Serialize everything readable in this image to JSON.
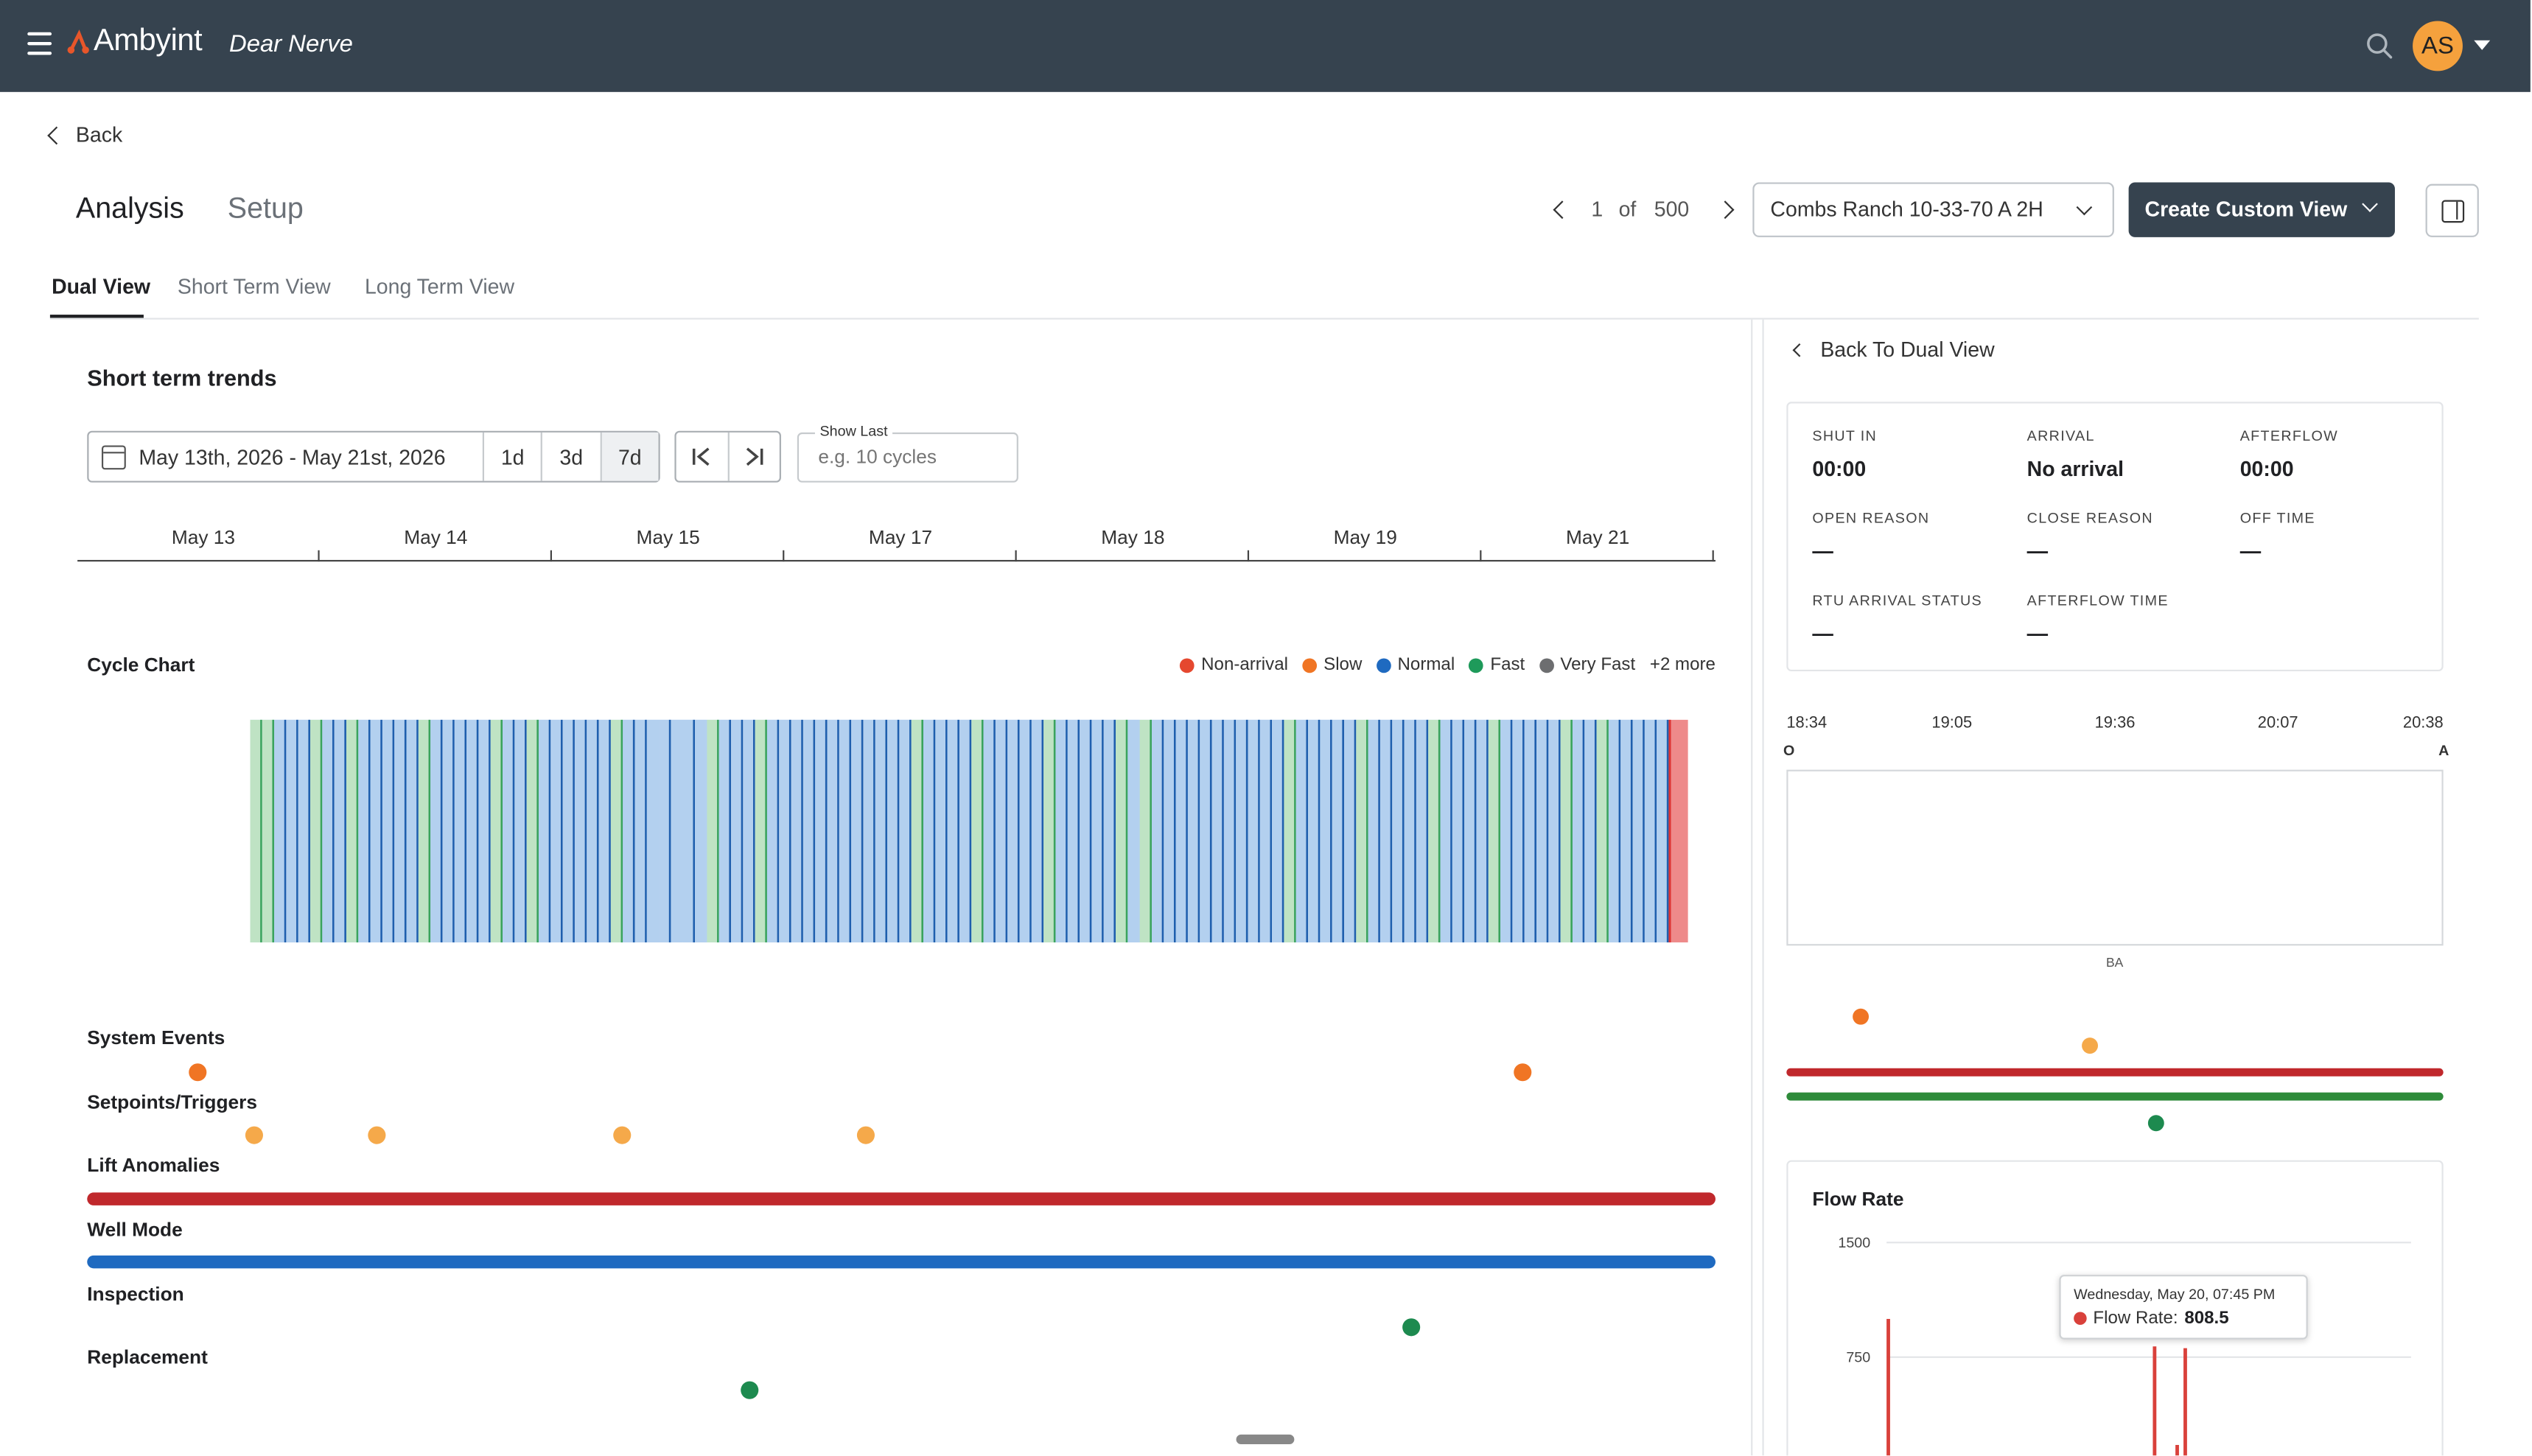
{
  "header": {
    "brand": "Ambyint",
    "org": "Dear Nerve",
    "avatar_initials": "AS",
    "brand_accent": "#e8562a",
    "bar_color": "#36434f"
  },
  "nav": {
    "back_label": "Back",
    "page_tabs": [
      {
        "label": "Analysis",
        "active": true
      },
      {
        "label": "Setup",
        "active": false
      }
    ],
    "pager": {
      "current": "1",
      "of_label": "of",
      "total": "500"
    },
    "well_select_value": "Combs Ranch 10-33-70 A 2H",
    "create_view_label": "Create Custom View",
    "view_tabs": [
      {
        "label": "Dual View",
        "active": true
      },
      {
        "label": "Short Term View",
        "active": false
      },
      {
        "label": "Long Term View",
        "active": false
      }
    ]
  },
  "short_term": {
    "title": "Short term trends",
    "date_range": "May 13th, 2026 - May 21st, 2026",
    "range_buttons": [
      "1d",
      "3d",
      "7d"
    ],
    "selected_range": "7d",
    "show_last_label": "Show Last",
    "show_last_placeholder": "e.g. 10 cycles",
    "date_axis": [
      "May 13",
      "May 14",
      "May 15",
      "May 17",
      "May 18",
      "May 19",
      "May 21"
    ]
  },
  "cycle_chart": {
    "title": "Cycle Chart",
    "legend": [
      {
        "label": "Non-arrival",
        "color": "#e5482f"
      },
      {
        "label": "Slow",
        "color": "#f07524"
      },
      {
        "label": "Normal",
        "color": "#1f6ac0"
      },
      {
        "label": "Fast",
        "color": "#1e9a5a"
      },
      {
        "label": "Very Fast",
        "color": "#6d6e70"
      }
    ],
    "more_label": "+2 more"
  },
  "event_rows": [
    {
      "label": "System Events",
      "color": "#f07524"
    },
    {
      "label": "Setpoints/Triggers",
      "color": "#f5a94a"
    },
    {
      "label": "Lift Anomalies",
      "color": "#c0282c"
    },
    {
      "label": "Well Mode",
      "color": "#1f6ac0"
    },
    {
      "label": "Inspection",
      "color": "#1d8a4f"
    },
    {
      "label": "Replacement",
      "color": "#1d8a4f"
    }
  ],
  "detail": {
    "back_label": "Back To Dual View",
    "fields": [
      {
        "key": "SHUT IN",
        "value": "00:00"
      },
      {
        "key": "ARRIVAL",
        "value": "No arrival"
      },
      {
        "key": "AFTERFLOW",
        "value": "00:00"
      },
      {
        "key": "OPEN REASON",
        "value": "—"
      },
      {
        "key": "CLOSE REASON",
        "value": "—"
      },
      {
        "key": "OFF TIME",
        "value": "—"
      },
      {
        "key": "RTU ARRIVAL STATUS",
        "value": "—"
      },
      {
        "key": "AFTERFLOW TIME",
        "value": "—"
      }
    ],
    "time_axis": [
      "18:34",
      "19:05",
      "19:36",
      "20:07",
      "20:38"
    ],
    "axis_start_marker": "O",
    "axis_end_marker": "A",
    "mini_chart_label": "BA"
  },
  "chart_data": {
    "type": "bar",
    "title": "Flow Rate",
    "ylabel": "",
    "yticks": [
      1500,
      750
    ],
    "ylim": [
      0,
      1500
    ],
    "series": [
      {
        "name": "Flow Rate",
        "color": "#d9413b",
        "values": [
          1000,
          820,
          175,
          808.5
        ]
      }
    ],
    "tooltip": {
      "time": "Wednesday, May 20, 07:45 PM",
      "series": "Flow Rate:",
      "value": "808.5"
    }
  }
}
